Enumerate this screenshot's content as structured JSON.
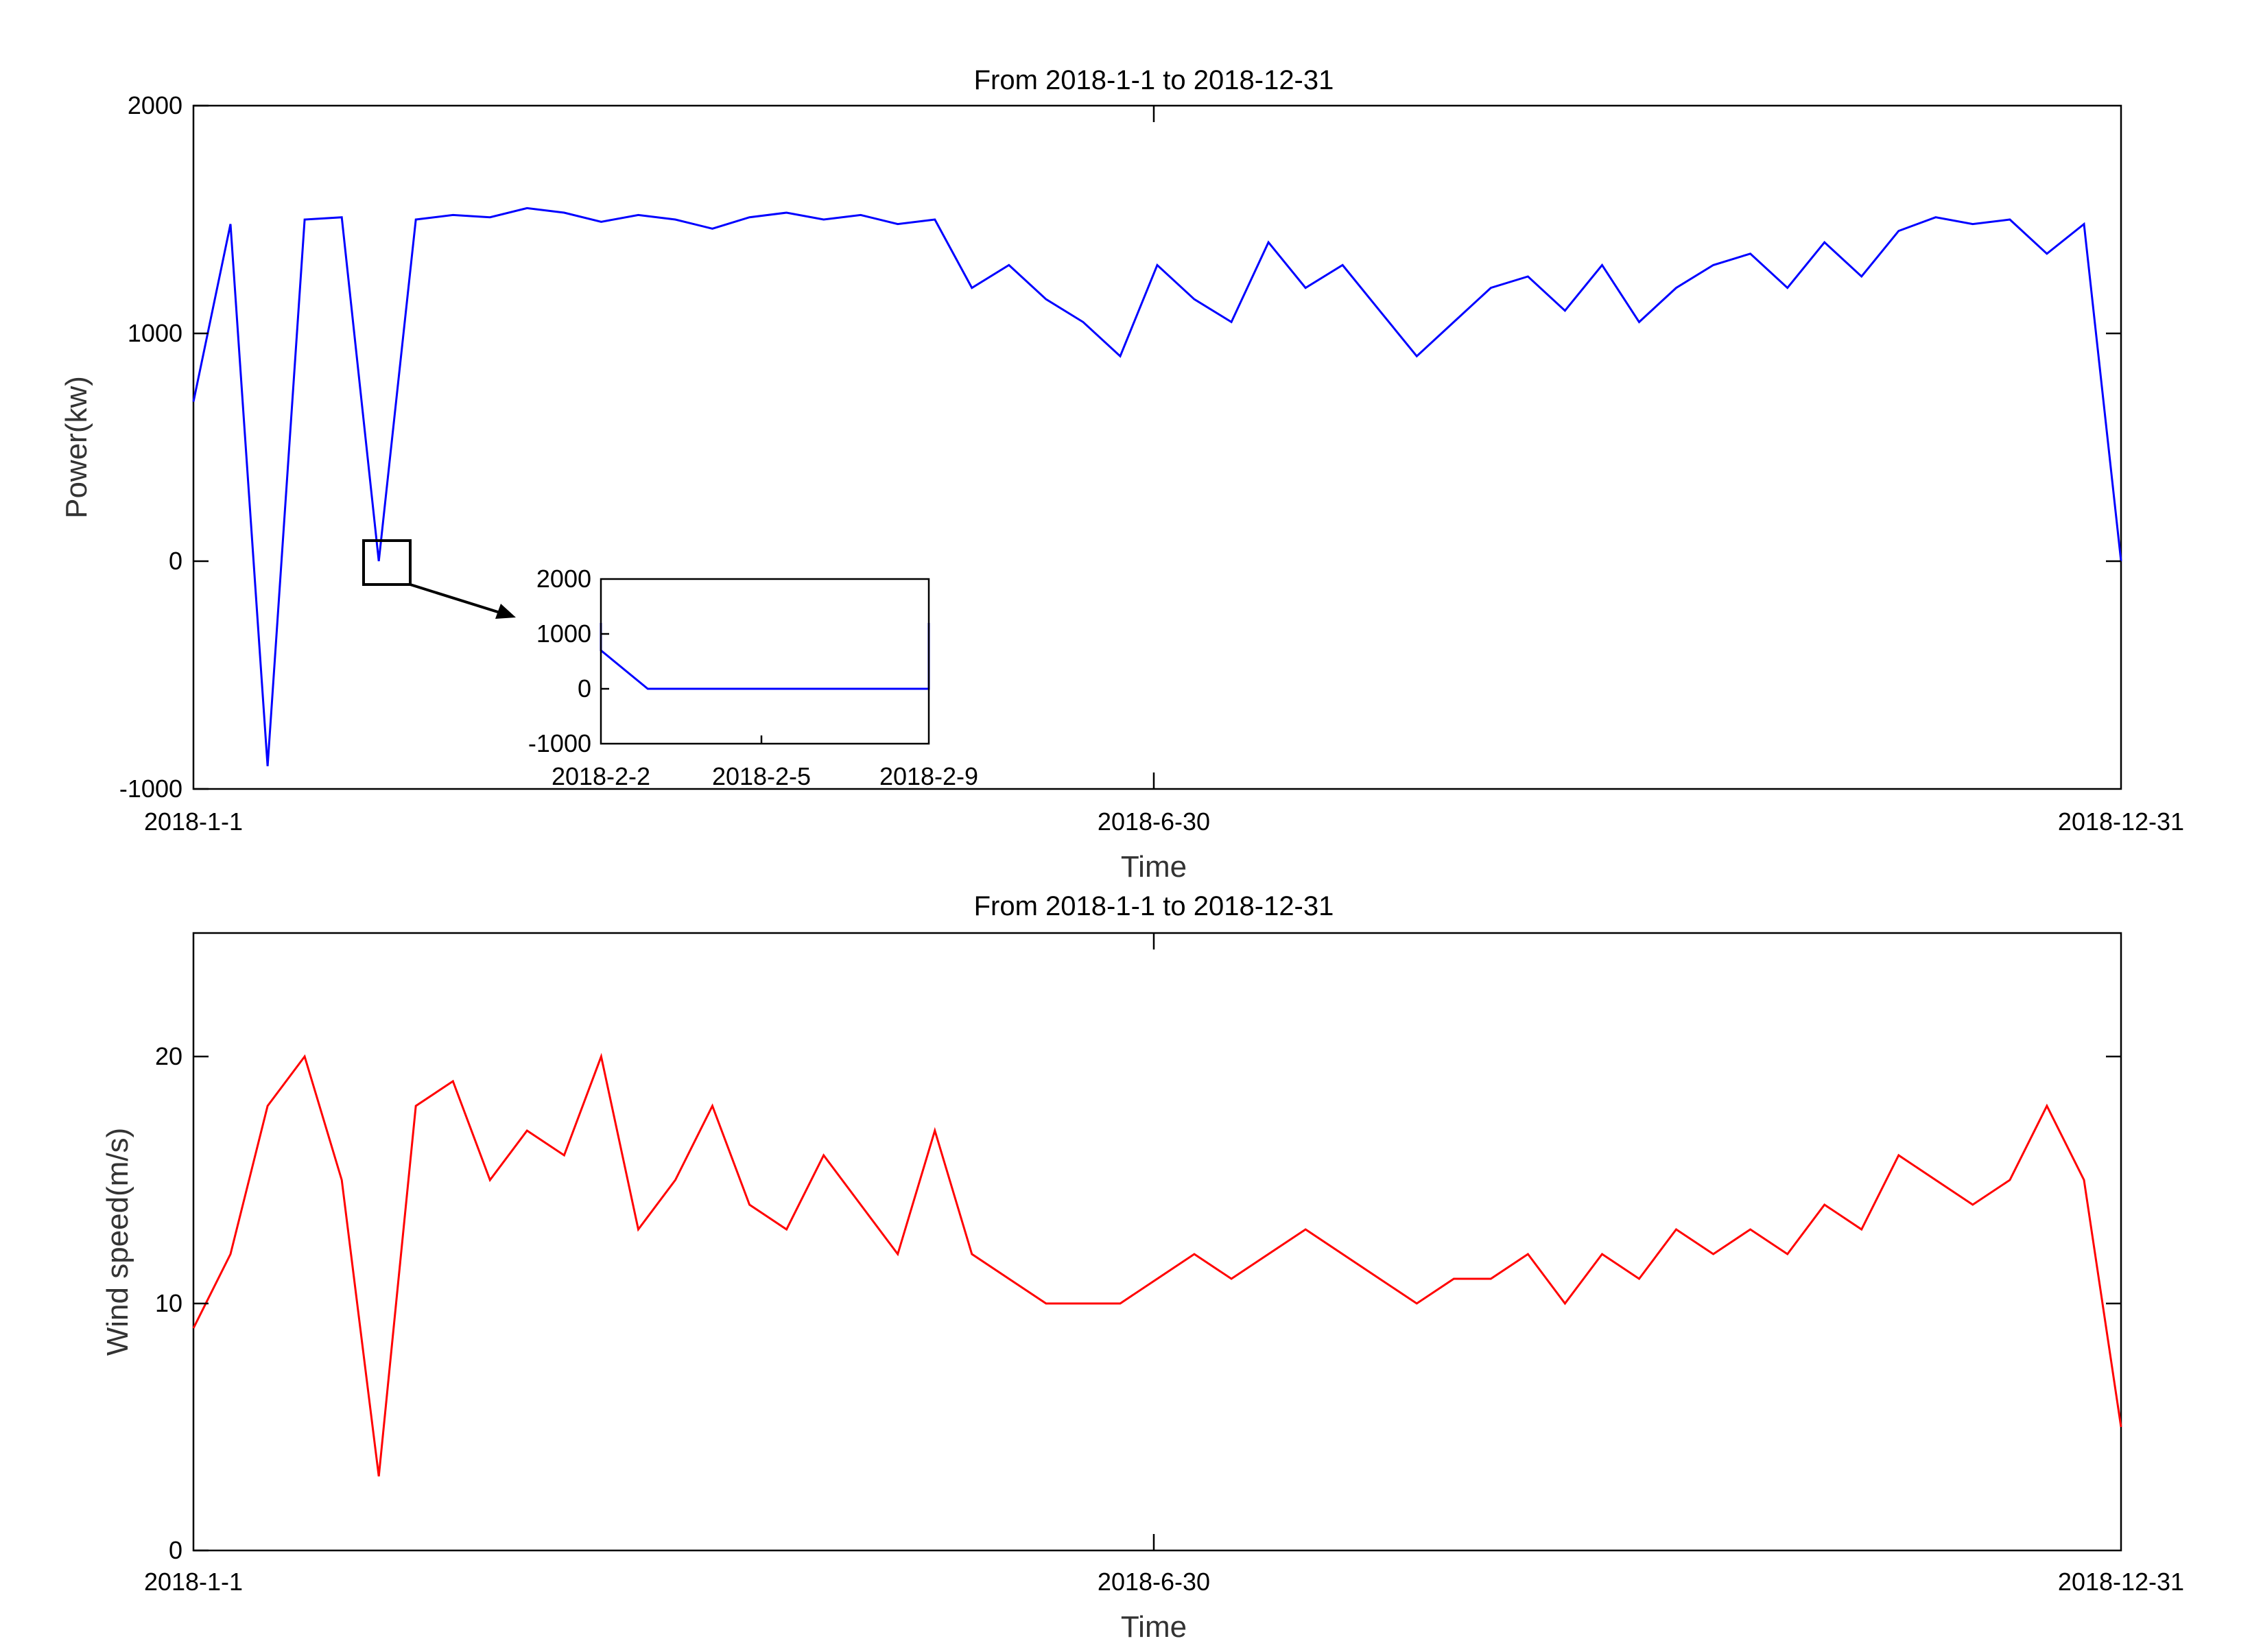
{
  "colors": {
    "power": "#0000ff",
    "wind": "#ff0000",
    "axes": "#000000"
  },
  "chart_data": [
    {
      "type": "line",
      "title": "From 2018-1-1 to 2018-12-31",
      "xlabel": "Time",
      "ylabel": "Power(kw)",
      "xlim": [
        "2018-1-1",
        "2018-12-31"
      ],
      "ylim": [
        -1000,
        2000
      ],
      "xticks": [
        "2018-1-1",
        "2018-6-30",
        "2018-12-31"
      ],
      "yticks": [
        "-1000",
        "0",
        "1000",
        "2000"
      ],
      "grid": false,
      "series": [
        {
          "x": [
            "2018-1-1",
            "2018-1-8",
            "2018-1-15",
            "2018-1-22",
            "2018-1-29",
            "2018-2-5",
            "2018-2-12",
            "2018-2-19",
            "2018-2-26",
            "2018-3-5",
            "2018-3-12",
            "2018-3-19",
            "2018-3-26",
            "2018-4-2",
            "2018-4-9",
            "2018-4-16",
            "2018-4-23",
            "2018-4-30",
            "2018-5-7",
            "2018-5-14",
            "2018-5-21",
            "2018-5-28",
            "2018-6-4",
            "2018-6-11",
            "2018-6-18",
            "2018-6-25",
            "2018-7-2",
            "2018-7-9",
            "2018-7-16",
            "2018-7-23",
            "2018-7-30",
            "2018-8-6",
            "2018-8-13",
            "2018-8-20",
            "2018-8-27",
            "2018-9-3",
            "2018-9-10",
            "2018-9-17",
            "2018-9-24",
            "2018-10-1",
            "2018-10-8",
            "2018-10-15",
            "2018-10-22",
            "2018-10-29",
            "2018-11-5",
            "2018-11-12",
            "2018-11-19",
            "2018-11-26",
            "2018-12-3",
            "2018-12-10",
            "2018-12-17",
            "2018-12-24",
            "2018-12-31"
          ],
          "values": [
            700,
            1480,
            -900,
            1500,
            1510,
            0,
            1500,
            1520,
            1510,
            1550,
            1530,
            1490,
            1520,
            1500,
            1460,
            1510,
            1530,
            1500,
            1520,
            1480,
            1500,
            1200,
            1300,
            1150,
            1050,
            900,
            1300,
            1150,
            1050,
            1400,
            1200,
            1300,
            1100,
            900,
            1050,
            1200,
            1250,
            1100,
            1300,
            1050,
            1200,
            1300,
            1350,
            1200,
            1400,
            1250,
            1450,
            1510,
            1480,
            1500,
            1350,
            1480,
            0
          ]
        }
      ],
      "inset": {
        "xlim": [
          "2018-2-2",
          "2018-2-9"
        ],
        "ylim": [
          -1000,
          2000
        ],
        "xticks": [
          "2018-2-2",
          "2018-2-5",
          "2018-2-9"
        ],
        "yticks": [
          "-1000",
          "0",
          "1000",
          "2000"
        ],
        "series": [
          {
            "x": [
              "2018-2-2",
              "2018-2-2",
              "2018-2-3",
              "2018-2-5",
              "2018-2-7",
              "2018-2-9",
              "2018-2-9"
            ],
            "values": [
              1200,
              700,
              0,
              0,
              0,
              0,
              1200
            ]
          }
        ]
      }
    },
    {
      "type": "line",
      "title": "From 2018-1-1 to 2018-12-31",
      "xlabel": "Time",
      "ylabel": "Wind speed(m/s)",
      "xlim": [
        "2018-1-1",
        "2018-12-31"
      ],
      "ylim": [
        0,
        25
      ],
      "xticks": [
        "2018-1-1",
        "2018-6-30",
        "2018-12-31"
      ],
      "yticks": [
        "0",
        "10",
        "20"
      ],
      "grid": false,
      "series": [
        {
          "x": [
            "2018-1-1",
            "2018-1-8",
            "2018-1-15",
            "2018-1-22",
            "2018-1-29",
            "2018-2-5",
            "2018-2-12",
            "2018-2-19",
            "2018-2-26",
            "2018-3-5",
            "2018-3-12",
            "2018-3-19",
            "2018-3-26",
            "2018-4-2",
            "2018-4-9",
            "2018-4-16",
            "2018-4-23",
            "2018-4-30",
            "2018-5-7",
            "2018-5-14",
            "2018-5-21",
            "2018-5-28",
            "2018-6-4",
            "2018-6-11",
            "2018-6-18",
            "2018-6-25",
            "2018-7-2",
            "2018-7-9",
            "2018-7-16",
            "2018-7-23",
            "2018-7-30",
            "2018-8-6",
            "2018-8-13",
            "2018-8-20",
            "2018-8-27",
            "2018-9-3",
            "2018-9-10",
            "2018-9-17",
            "2018-9-24",
            "2018-10-1",
            "2018-10-8",
            "2018-10-15",
            "2018-10-22",
            "2018-10-29",
            "2018-11-5",
            "2018-11-12",
            "2018-11-19",
            "2018-11-26",
            "2018-12-3",
            "2018-12-10",
            "2018-12-17",
            "2018-12-24",
            "2018-12-31"
          ],
          "values": [
            9,
            12,
            18,
            20,
            15,
            3,
            18,
            19,
            15,
            17,
            16,
            20,
            13,
            15,
            18,
            14,
            13,
            16,
            14,
            12,
            17,
            12,
            11,
            10,
            10,
            10,
            11,
            12,
            11,
            12,
            13,
            12,
            11,
            10,
            11,
            11,
            12,
            10,
            12,
            11,
            13,
            12,
            13,
            12,
            14,
            13,
            16,
            15,
            14,
            15,
            18,
            15,
            5
          ]
        }
      ]
    }
  ]
}
